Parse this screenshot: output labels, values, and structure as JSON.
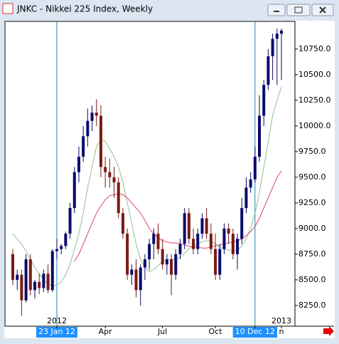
{
  "window_title": "JNKC - Nikkei 225 Index, Weekly",
  "chart_data": {
    "type": "candlestick",
    "ylim": [
      8048,
      11020
    ],
    "yticks": [
      {
        "value": 8250,
        "label": "8250.0"
      },
      {
        "value": 8500,
        "label": "8500.0"
      },
      {
        "value": 8750,
        "label": "8750.0"
      },
      {
        "value": 9000,
        "label": "9000.0"
      },
      {
        "value": 9250,
        "label": "9250.0"
      },
      {
        "value": 9500,
        "label": "9500.0"
      },
      {
        "value": 9750,
        "label": "9750.0"
      },
      {
        "value": 10000,
        "label": "10000.0"
      },
      {
        "value": 10250,
        "label": "10250.0"
      },
      {
        "value": 10500,
        "label": "10500.0"
      },
      {
        "value": 10750,
        "label": "10750.0"
      }
    ],
    "categories": [
      null,
      null,
      null,
      null,
      null,
      null,
      null,
      null,
      null,
      null,
      "23 Jan 12",
      null,
      null,
      null,
      null,
      null,
      null,
      null,
      null,
      null,
      null,
      "Apr",
      null,
      null,
      null,
      null,
      null,
      null,
      null,
      null,
      null,
      null,
      null,
      null,
      "Jul",
      null,
      null,
      null,
      null,
      null,
      null,
      null,
      null,
      null,
      null,
      null,
      "Oct",
      null,
      null,
      null,
      null,
      null,
      null,
      null,
      null,
      "10 Dec 12",
      null,
      null,
      null,
      null,
      null,
      "n"
    ],
    "highlighted_categories": [
      10,
      55
    ],
    "separators": [
      10,
      55
    ],
    "annotations": [
      {
        "text": "2012",
        "index": 10
      },
      {
        "text": "2013",
        "index": 61
      }
    ],
    "up_color": "#0a0a6e",
    "down_color": "#7a1a14",
    "open": [
      8750,
      8500,
      8550,
      8300,
      8700,
      8400,
      8480,
      8420,
      8560,
      8400,
      8780,
      8800,
      8830,
      8950,
      9200,
      9550,
      9700,
      9900,
      10050,
      10130,
      10100,
      9600,
      9550,
      9500,
      9450,
      9150,
      8950,
      8550,
      8600,
      8400,
      8620,
      8700,
      8850,
      8950,
      8800,
      8650,
      8700,
      8550,
      8750,
      8850,
      9150,
      8900,
      8800,
      8950,
      9100,
      8950,
      8800,
      8550,
      8800,
      9000,
      8950,
      8750,
      8900,
      9200,
      9400,
      9480,
      9700,
      10100,
      10400,
      10680,
      10850,
      10900
    ],
    "high": [
      8800,
      8600,
      8600,
      8750,
      8750,
      8500,
      8560,
      8600,
      8650,
      8800,
      8900,
      8850,
      8970,
      9250,
      9600,
      9800,
      10000,
      10170,
      10200,
      10260,
      10200,
      9700,
      9680,
      9600,
      9500,
      9200,
      9000,
      8650,
      8700,
      8650,
      8750,
      8900,
      9000,
      9050,
      8900,
      8750,
      8750,
      8800,
      8900,
      9200,
      9200,
      9000,
      9000,
      9150,
      9200,
      9050,
      8950,
      8850,
      9050,
      9050,
      9000,
      8950,
      9300,
      9500,
      9550,
      9800,
      10300,
      10450,
      10750,
      10900,
      10950,
      10950
    ],
    "low": [
      8450,
      8400,
      8150,
      8280,
      8350,
      8320,
      8360,
      8380,
      8370,
      8380,
      8700,
      8750,
      8800,
      8900,
      9150,
      9450,
      9650,
      9800,
      9950,
      10000,
      9500,
      9400,
      9400,
      9300,
      9100,
      8900,
      8500,
      8450,
      8330,
      8250,
      8500,
      8600,
      8700,
      8750,
      8600,
      8550,
      8350,
      8500,
      8700,
      8800,
      8850,
      8750,
      8750,
      8900,
      8900,
      8750,
      8500,
      8500,
      8750,
      8850,
      8700,
      8600,
      8850,
      9150,
      9350,
      9450,
      9650,
      10000,
      10350,
      10450,
      10400,
      10450
    ],
    "close": [
      8500,
      8550,
      8300,
      8700,
      8400,
      8480,
      8420,
      8560,
      8400,
      8780,
      8800,
      8830,
      8950,
      9200,
      9550,
      9700,
      9900,
      10050,
      10130,
      10100,
      9600,
      9550,
      9500,
      9450,
      9150,
      8950,
      8550,
      8600,
      8400,
      8620,
      8700,
      8850,
      8950,
      8800,
      8650,
      8700,
      8550,
      8750,
      8850,
      9150,
      8900,
      8800,
      8950,
      9100,
      8950,
      8800,
      8550,
      8800,
      9000,
      8950,
      8750,
      8900,
      9200,
      9400,
      9480,
      9700,
      10100,
      10400,
      10680,
      10850,
      10900,
      10930
    ],
    "lines": [
      {
        "color": "#8fbf8f",
        "values": [
          8950,
          8900,
          8850,
          8780,
          8700,
          8620,
          8560,
          8500,
          8460,
          8440,
          8450,
          8480,
          8550,
          8650,
          8800,
          8950,
          9150,
          9400,
          9600,
          9800,
          9870,
          9850,
          9780,
          9700,
          9600,
          9450,
          9250,
          9050,
          8850,
          8700,
          8620,
          8580,
          8600,
          8640,
          8680,
          8700,
          8700,
          8700,
          8720,
          8760,
          8800,
          8830,
          8850,
          8870,
          8880,
          8880,
          8850,
          8820,
          8800,
          8790,
          8780,
          8790,
          8830,
          8900,
          9000,
          9150,
          9350,
          9600,
          9850,
          10100,
          10250,
          10380
        ]
      },
      {
        "color": "#e0407a",
        "values": [
          null,
          null,
          null,
          null,
          null,
          null,
          null,
          null,
          null,
          null,
          null,
          null,
          null,
          null,
          8680,
          8750,
          8850,
          8950,
          9050,
          9150,
          9220,
          9280,
          9320,
          9330,
          9340,
          9330,
          9300,
          9250,
          9200,
          9150,
          9080,
          9000,
          8950,
          8910,
          8880,
          8870,
          8860,
          8860,
          8850,
          8840,
          8830,
          8820,
          8820,
          8810,
          8810,
          8820,
          8830,
          8840,
          8850,
          8860,
          8870,
          8880,
          8900,
          8930,
          8970,
          9020,
          9100,
          9200,
          9300,
          9400,
          9500,
          9560
        ]
      }
    ]
  }
}
